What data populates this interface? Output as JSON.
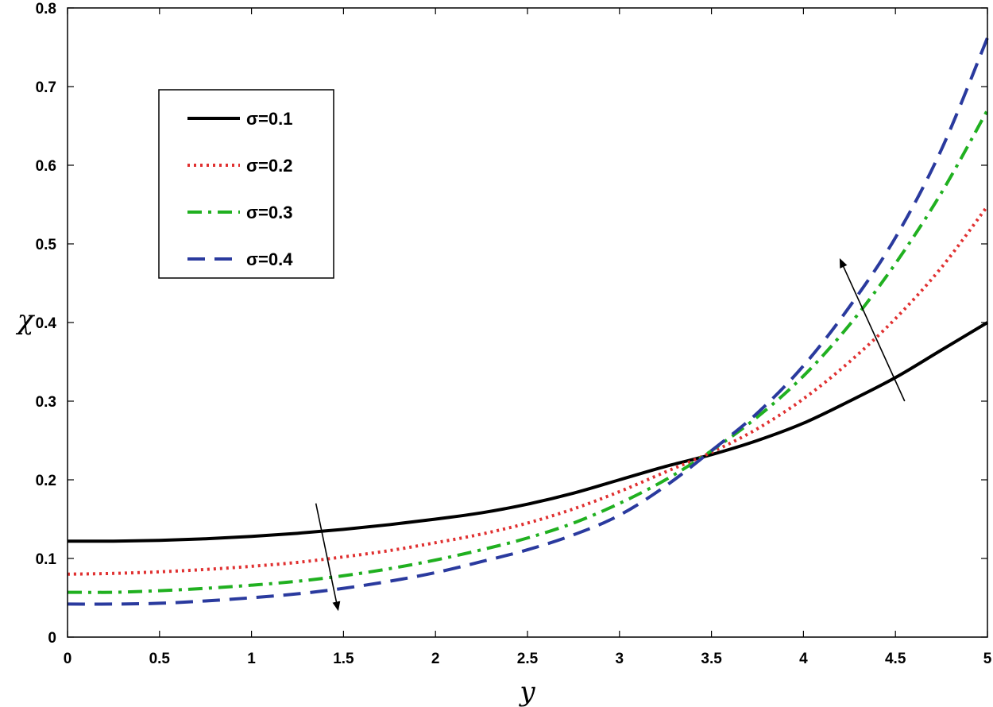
{
  "chart_data": {
    "type": "line",
    "title": "",
    "xlabel": "y",
    "ylabel": "χ",
    "xlim": [
      0,
      5
    ],
    "ylim": [
      0,
      0.8
    ],
    "xticks": [
      "0",
      "0.5",
      "1",
      "1.5",
      "2",
      "2.5",
      "3",
      "3.5",
      "4",
      "4.5",
      "5"
    ],
    "yticks": [
      "0",
      "0.1",
      "0.2",
      "0.3",
      "0.4",
      "0.5",
      "0.6",
      "0.7",
      "0.8"
    ],
    "grid": false,
    "legend_position": "top-left",
    "x": [
      0,
      0.25,
      0.5,
      0.75,
      1,
      1.25,
      1.5,
      1.75,
      2,
      2.25,
      2.5,
      2.75,
      3,
      3.25,
      3.5,
      3.75,
      4,
      4.25,
      4.5,
      4.75,
      5
    ],
    "series": [
      {
        "name": "σ=0.1",
        "color": "#000000",
        "style": "solid",
        "values": [
          0.122,
          0.122,
          0.123,
          0.125,
          0.128,
          0.132,
          0.137,
          0.143,
          0.15,
          0.158,
          0.169,
          0.183,
          0.2,
          0.217,
          0.232,
          0.25,
          0.272,
          0.3,
          0.33,
          0.365,
          0.4
        ]
      },
      {
        "name": "σ=0.2",
        "color": "#e03030",
        "style": "dotted",
        "values": [
          0.08,
          0.081,
          0.083,
          0.086,
          0.09,
          0.095,
          0.102,
          0.11,
          0.12,
          0.131,
          0.145,
          0.163,
          0.185,
          0.21,
          0.235,
          0.265,
          0.303,
          0.35,
          0.405,
          0.47,
          0.548
        ]
      },
      {
        "name": "σ=0.3",
        "color": "#20b020",
        "style": "dashdot",
        "values": [
          0.057,
          0.057,
          0.059,
          0.062,
          0.066,
          0.071,
          0.078,
          0.087,
          0.098,
          0.111,
          0.126,
          0.145,
          0.17,
          0.2,
          0.237,
          0.28,
          0.332,
          0.397,
          0.475,
          0.565,
          0.67
        ]
      },
      {
        "name": "σ=0.4",
        "color": "#2a3a9e",
        "style": "dashed",
        "values": [
          0.042,
          0.042,
          0.043,
          0.046,
          0.05,
          0.055,
          0.062,
          0.071,
          0.082,
          0.096,
          0.111,
          0.13,
          0.155,
          0.192,
          0.237,
          0.285,
          0.345,
          0.42,
          0.508,
          0.62,
          0.762
        ]
      }
    ],
    "annotations": [
      {
        "type": "arrow",
        "meaning": "decreasing with σ",
        "from": [
          1.35,
          0.17
        ],
        "to": [
          1.47,
          0.035
        ]
      },
      {
        "type": "arrow",
        "meaning": "increasing with σ",
        "from": [
          4.55,
          0.3
        ],
        "to": [
          4.2,
          0.48
        ]
      }
    ]
  }
}
